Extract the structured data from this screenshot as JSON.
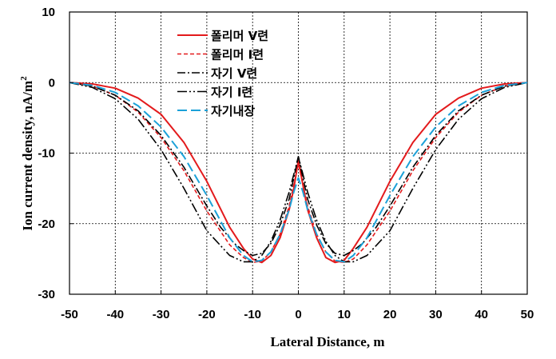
{
  "chart_data": {
    "type": "line",
    "xlabel": "Lateral Distance, m",
    "ylabel": "Ion current  density, nA/m",
    "ylabel_sup": "2",
    "xlim": [
      -50,
      50
    ],
    "ylim": [
      -30,
      10
    ],
    "xticks": [
      -50,
      -40,
      -30,
      -20,
      -10,
      0,
      10,
      20,
      30,
      40,
      50
    ],
    "yticks": [
      10,
      0,
      -10,
      -20,
      -30
    ],
    "grid": "dashed",
    "legend_position": "top-left-center",
    "series": [
      {
        "name": "폴리머 V련",
        "color": "#e31a1c",
        "dash": "solid",
        "width": 2,
        "x": [
          -50,
          -45,
          -40,
          -35,
          -30,
          -25,
          -20,
          -15,
          -12,
          -10,
          -8,
          -6,
          -4,
          -2,
          -1,
          0,
          1,
          2,
          4,
          6,
          8,
          10,
          12,
          15,
          20,
          25,
          30,
          35,
          40,
          45,
          50
        ],
        "y": [
          0,
          -0.2,
          -0.8,
          -2.2,
          -4.5,
          -8.5,
          -14,
          -20.5,
          -23.5,
          -25,
          -25.5,
          -24.5,
          -22,
          -18,
          -15,
          -11,
          -14.5,
          -18,
          -22,
          -24.8,
          -25.5,
          -25.2,
          -23.5,
          -20.5,
          -14,
          -8.5,
          -4.5,
          -2.2,
          -0.8,
          -0.2,
          0
        ]
      },
      {
        "name": "폴리머 I련",
        "color": "#e31a1c",
        "dash": "5,3",
        "width": 1.6,
        "x": [
          -50,
          -45,
          -40,
          -35,
          -30,
          -25,
          -20,
          -15,
          -12,
          -10,
          -8,
          -6,
          -4,
          -2,
          -1,
          0,
          1,
          2,
          4,
          6,
          8,
          10,
          12,
          15,
          20,
          25,
          30,
          35,
          40,
          45,
          50
        ],
        "y": [
          0,
          -0.5,
          -1.8,
          -4.2,
          -7.8,
          -12.5,
          -18.2,
          -23,
          -24.8,
          -25.5,
          -25.3,
          -24,
          -21.5,
          -17.5,
          -14.5,
          -11.5,
          -14.5,
          -17.5,
          -21.5,
          -24,
          -25.3,
          -25.5,
          -25,
          -23,
          -18.2,
          -12.5,
          -7.8,
          -4.2,
          -1.8,
          -0.5,
          0
        ]
      },
      {
        "name": "자기 V련",
        "color": "#000000",
        "dash": "10,3,2,3",
        "width": 1.6,
        "x": [
          -50,
          -45,
          -40,
          -35,
          -30,
          -25,
          -20,
          -17,
          -14,
          -12,
          -10,
          -8,
          -6,
          -4,
          -2,
          -1,
          0,
          1,
          2,
          4,
          6,
          8,
          10,
          12,
          14,
          17,
          20,
          25,
          30,
          35,
          40,
          45,
          50
        ],
        "y": [
          0,
          -0.5,
          -1.8,
          -4,
          -7.5,
          -12,
          -17.5,
          -20.5,
          -22.8,
          -23.8,
          -24.5,
          -24.2,
          -22.8,
          -20.2,
          -16.5,
          -13.5,
          -10.5,
          -13.5,
          -16.5,
          -20.2,
          -22.8,
          -24.2,
          -24.5,
          -23.8,
          -22.8,
          -20.5,
          -17.5,
          -12,
          -7.5,
          -4,
          -1.8,
          -0.5,
          0
        ]
      },
      {
        "name": "자기 I련",
        "color": "#000000",
        "dash": "12,3,2,3,2,3",
        "width": 1.6,
        "x": [
          -50,
          -45,
          -40,
          -35,
          -30,
          -25,
          -20,
          -15,
          -12,
          -10,
          -8,
          -6,
          -4,
          -2,
          -1,
          0,
          1,
          2,
          4,
          6,
          8,
          10,
          12,
          15,
          20,
          25,
          30,
          35,
          40,
          45,
          50
        ],
        "y": [
          0,
          -0.7,
          -2.3,
          -5.2,
          -9.5,
          -15,
          -21,
          -24.5,
          -25.4,
          -25.4,
          -24.5,
          -22.5,
          -19.5,
          -15.5,
          -13,
          -10.5,
          -13,
          -15.5,
          -19.5,
          -22.5,
          -24.5,
          -25.4,
          -25.4,
          -24.5,
          -21,
          -15,
          -9.5,
          -5.2,
          -2.3,
          -0.7,
          0
        ]
      },
      {
        "name": "자기내장",
        "color": "#1ba1d8",
        "dash": "12,5",
        "width": 2,
        "x": [
          -50,
          -45,
          -40,
          -35,
          -30,
          -25,
          -20,
          -15,
          -12,
          -10,
          -8,
          -6,
          -4,
          -2,
          -1,
          0,
          1,
          2,
          4,
          6,
          8,
          10,
          12,
          15,
          20,
          25,
          30,
          35,
          40,
          45,
          50
        ],
        "y": [
          0,
          -0.4,
          -1.4,
          -3.3,
          -6.3,
          -10.5,
          -16,
          -22,
          -24.5,
          -25.4,
          -25.2,
          -24,
          -21.5,
          -18,
          -15.5,
          -13.5,
          -15.5,
          -18,
          -21.5,
          -24,
          -25.2,
          -25.4,
          -24.5,
          -22,
          -16,
          -10.5,
          -6.3,
          -3.3,
          -1.4,
          -0.4,
          0
        ]
      }
    ]
  }
}
